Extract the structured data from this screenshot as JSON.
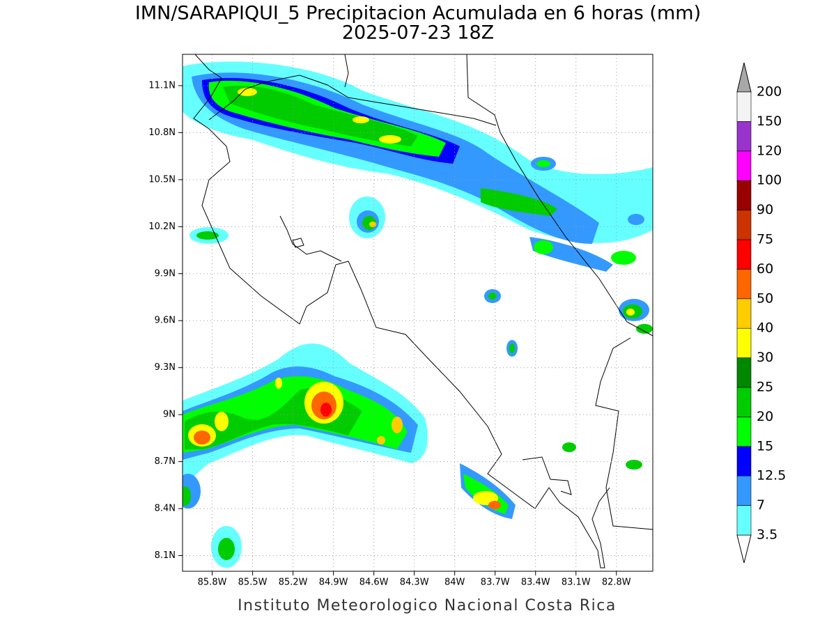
{
  "title": "IMN/SARAPIQUI_5 Precipitacion Acumulada en 6 horas (mm)",
  "subtitle": "2025-07-23 18Z",
  "footer": "Instituto Meteorologico Nacional Costa Rica",
  "map": {
    "xlim": [
      -86.02,
      -82.53
    ],
    "ylim": [
      8.0,
      11.3
    ],
    "grid": true,
    "xticks": [
      {
        "value": -85.8,
        "label": "85.8W"
      },
      {
        "value": -85.5,
        "label": "85.5W"
      },
      {
        "value": -85.2,
        "label": "85.2W"
      },
      {
        "value": -84.9,
        "label": "84.9W"
      },
      {
        "value": -84.6,
        "label": "84.6W"
      },
      {
        "value": -84.3,
        "label": "84.3W"
      },
      {
        "value": -84,
        "label": "84W"
      },
      {
        "value": -83.7,
        "label": "83.7W"
      },
      {
        "value": -83.4,
        "label": "83.4W"
      },
      {
        "value": -83.1,
        "label": "83.1W"
      },
      {
        "value": -82.8,
        "label": "82.8W"
      }
    ],
    "yticks": [
      {
        "value": 11.1,
        "label": "11.1N"
      },
      {
        "value": 10.8,
        "label": "10.8N"
      },
      {
        "value": 10.5,
        "label": "10.5N"
      },
      {
        "value": 10.2,
        "label": "10.2N"
      },
      {
        "value": 9.9,
        "label": "9.9N"
      },
      {
        "value": 9.6,
        "label": "9.6N"
      },
      {
        "value": 9.3,
        "label": "9.3N"
      },
      {
        "value": 9,
        "label": "9N"
      },
      {
        "value": 8.7,
        "label": "8.7N"
      },
      {
        "value": 8.4,
        "label": "8.4N"
      },
      {
        "value": 8.1,
        "label": "8.1N"
      }
    ]
  },
  "colorbar": {
    "levels": [
      3.5,
      7,
      12.5,
      15,
      20,
      25,
      30,
      40,
      50,
      60,
      75,
      90,
      100,
      120,
      150,
      200
    ],
    "colors": [
      "#66ffff",
      "#3399ff",
      "#0000ff",
      "#00ff00",
      "#00cc00",
      "#008800",
      "#ffff00",
      "#ffcc00",
      "#ff6600",
      "#ff0000",
      "#cc3300",
      "#990000",
      "#ff00ff",
      "#9933cc",
      "#f4f4f4"
    ],
    "over_color": "#a8a8a8",
    "under_color": "#ffffff"
  }
}
